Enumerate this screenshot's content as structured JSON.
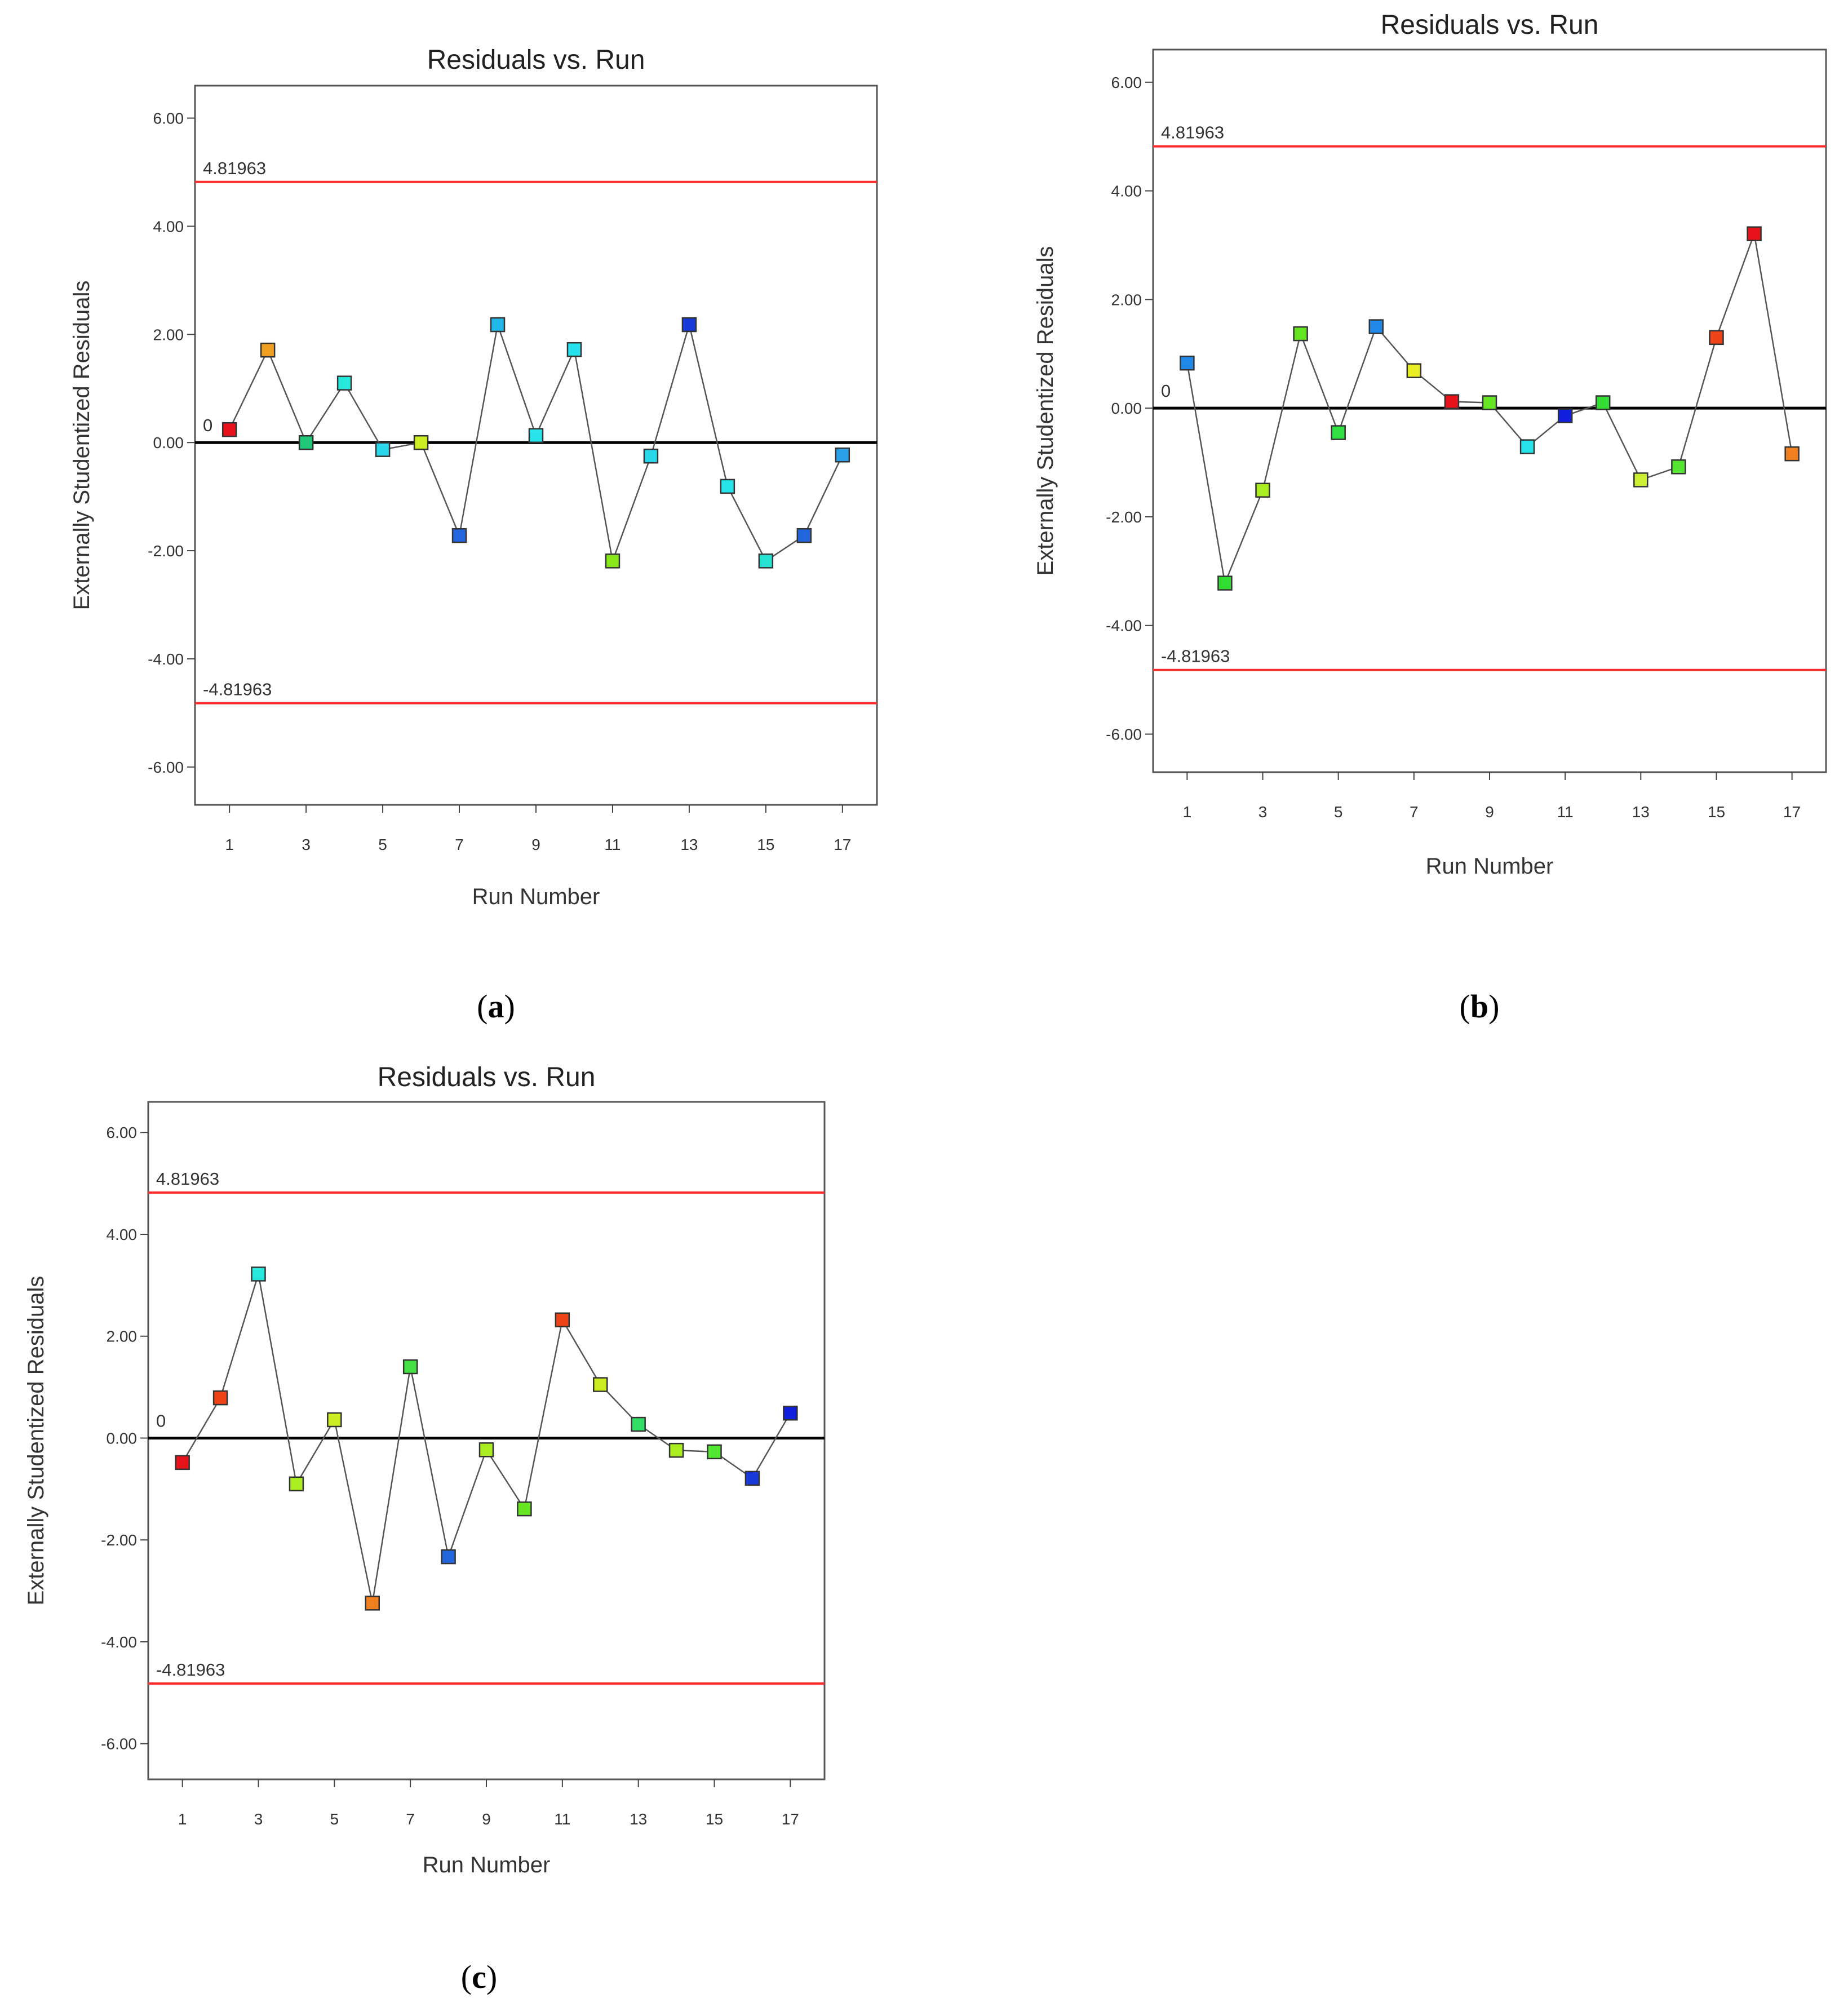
{
  "colors": {
    "limit_line": "#ff2a2a",
    "zero_line": "#000000",
    "connector": "#555555",
    "frame": "#555555"
  },
  "chart_data": [
    {
      "panel": "a",
      "caption_text": "a",
      "type": "scatter",
      "title": "Residuals vs. Run",
      "xlabel": "Run Number",
      "ylabel": "Externally Studentized Residuals",
      "xlim": [
        0.1,
        17.9
      ],
      "ylim": [
        -6.7,
        6.6
      ],
      "x_ticks": [
        1,
        3,
        5,
        7,
        9,
        11,
        13,
        15,
        17
      ],
      "y_ticks": [
        "6.00",
        "4.00",
        "2.00",
        "0.00",
        "-2.00",
        "-4.00",
        "-6.00"
      ],
      "reference_lines": [
        {
          "value": 4.81963,
          "label": "4.81963",
          "color": "#ff2a2a"
        },
        {
          "value": 0,
          "label": "0",
          "color": "#000000"
        },
        {
          "value": -4.81963,
          "label": "-4.81963",
          "color": "#ff2a2a"
        }
      ],
      "points": [
        {
          "run": 1,
          "value": 0.24,
          "color": "#e8121a"
        },
        {
          "run": 2,
          "value": 1.71,
          "color": "#f0a020"
        },
        {
          "run": 3,
          "value": 0.0,
          "color": "#22c87a"
        },
        {
          "run": 4,
          "value": 1.1,
          "color": "#26e8dc"
        },
        {
          "run": 5,
          "value": -0.13,
          "color": "#2ad8ec"
        },
        {
          "run": 6,
          "value": 0.0,
          "color": "#ccee22"
        },
        {
          "run": 7,
          "value": -1.72,
          "color": "#2266dd"
        },
        {
          "run": 8,
          "value": 2.18,
          "color": "#22b8ec"
        },
        {
          "run": 9,
          "value": 0.13,
          "color": "#26e4ea"
        },
        {
          "run": 10,
          "value": 1.72,
          "color": "#26e0ec"
        },
        {
          "run": 11,
          "value": -2.19,
          "color": "#88e81a"
        },
        {
          "run": 12,
          "value": -0.25,
          "color": "#2ad8ec"
        },
        {
          "run": 13,
          "value": 2.18,
          "color": "#1838d8"
        },
        {
          "run": 14,
          "value": -0.81,
          "color": "#26e4ea"
        },
        {
          "run": 15,
          "value": -2.19,
          "color": "#26e4d4"
        },
        {
          "run": 16,
          "value": -1.72,
          "color": "#2266dd"
        },
        {
          "run": 17,
          "value": -0.23,
          "color": "#2aa0e8"
        }
      ]
    },
    {
      "panel": "b",
      "caption_text": "b",
      "type": "scatter",
      "title": "Residuals vs. Run",
      "xlabel": "Run Number",
      "ylabel": "Externally Studentized Residuals",
      "xlim": [
        0.1,
        17.9
      ],
      "ylim": [
        -6.7,
        6.6
      ],
      "x_ticks": [
        1,
        3,
        5,
        7,
        9,
        11,
        13,
        15,
        17
      ],
      "y_ticks": [
        "6.00",
        "4.00",
        "2.00",
        "0.00",
        "-2.00",
        "-4.00",
        "-6.00"
      ],
      "reference_lines": [
        {
          "value": 4.81963,
          "label": "4.81963",
          "color": "#ff2a2a"
        },
        {
          "value": 0,
          "label": "0",
          "color": "#000000"
        },
        {
          "value": -4.81963,
          "label": "-4.81963",
          "color": "#ff2a2a"
        }
      ],
      "points": [
        {
          "run": 1,
          "value": 0.83,
          "color": "#2288e8"
        },
        {
          "run": 2,
          "value": -3.22,
          "color": "#33dd33"
        },
        {
          "run": 3,
          "value": -1.51,
          "color": "#aaee22"
        },
        {
          "run": 4,
          "value": 1.37,
          "color": "#66e622"
        },
        {
          "run": 5,
          "value": -0.45,
          "color": "#33e044"
        },
        {
          "run": 6,
          "value": 1.5,
          "color": "#2288e8"
        },
        {
          "run": 7,
          "value": 0.69,
          "color": "#e8ee22"
        },
        {
          "run": 8,
          "value": 0.12,
          "color": "#e8121a"
        },
        {
          "run": 9,
          "value": 0.1,
          "color": "#66e622"
        },
        {
          "run": 10,
          "value": -0.71,
          "color": "#26e4ea"
        },
        {
          "run": 11,
          "value": -0.14,
          "color": "#1020dd"
        },
        {
          "run": 12,
          "value": 0.1,
          "color": "#33dd33"
        },
        {
          "run": 13,
          "value": -1.32,
          "color": "#ccee33"
        },
        {
          "run": 14,
          "value": -1.08,
          "color": "#55e633"
        },
        {
          "run": 15,
          "value": 1.3,
          "color": "#ee4418"
        },
        {
          "run": 16,
          "value": 3.21,
          "color": "#e8121a"
        },
        {
          "run": 17,
          "value": -0.84,
          "color": "#f08020"
        }
      ]
    },
    {
      "panel": "c",
      "caption_text": "c",
      "type": "scatter",
      "title": "Residuals vs. Run",
      "xlabel": "Run Number",
      "ylabel": "Externally Studentized Residuals",
      "xlim": [
        0.1,
        17.9
      ],
      "ylim": [
        -6.7,
        6.6
      ],
      "x_ticks": [
        1,
        3,
        5,
        7,
        9,
        11,
        13,
        15,
        17
      ],
      "y_ticks": [
        "6.00",
        "4.00",
        "2.00",
        "0.00",
        "-2.00",
        "-4.00",
        "-6.00"
      ],
      "reference_lines": [
        {
          "value": 4.81963,
          "label": "4.81963",
          "color": "#ff2a2a"
        },
        {
          "value": 0,
          "label": "0",
          "color": "#000000"
        },
        {
          "value": -4.81963,
          "label": "-4.81963",
          "color": "#ff2a2a"
        }
      ],
      "points": [
        {
          "run": 1,
          "value": -0.48,
          "color": "#e8121a"
        },
        {
          "run": 2,
          "value": 0.79,
          "color": "#ee4418"
        },
        {
          "run": 3,
          "value": 3.22,
          "color": "#26e8dc"
        },
        {
          "run": 4,
          "value": -0.9,
          "color": "#aaee22"
        },
        {
          "run": 5,
          "value": 0.36,
          "color": "#ccee22"
        },
        {
          "run": 6,
          "value": -3.24,
          "color": "#f08020"
        },
        {
          "run": 7,
          "value": 1.4,
          "color": "#44e044"
        },
        {
          "run": 8,
          "value": -2.33,
          "color": "#2266dd"
        },
        {
          "run": 9,
          "value": -0.23,
          "color": "#aaee22"
        },
        {
          "run": 10,
          "value": -1.39,
          "color": "#66e622"
        },
        {
          "run": 11,
          "value": 2.32,
          "color": "#ee4418"
        },
        {
          "run": 12,
          "value": 1.05,
          "color": "#ccee22"
        },
        {
          "run": 13,
          "value": 0.27,
          "color": "#33dd66"
        },
        {
          "run": 14,
          "value": -0.24,
          "color": "#aaee22"
        },
        {
          "run": 15,
          "value": -0.27,
          "color": "#55e633"
        },
        {
          "run": 16,
          "value": -0.79,
          "color": "#1838d8"
        },
        {
          "run": 17,
          "value": 0.49,
          "color": "#1020dd"
        }
      ]
    }
  ]
}
